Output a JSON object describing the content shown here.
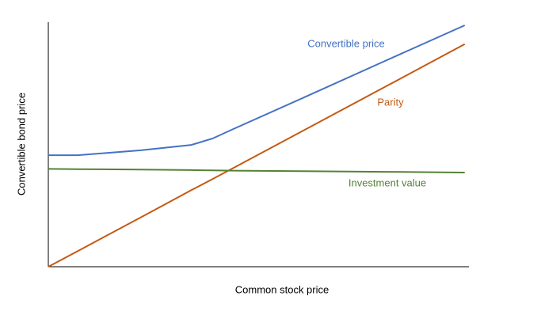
{
  "chart_data": {
    "type": "line",
    "x_label": "Common stock price",
    "y_label": "Convertible bond price",
    "x": [
      0,
      7,
      22,
      34,
      39,
      44,
      60,
      80,
      99
    ],
    "xlim": [
      0,
      100
    ],
    "ylim": [
      0,
      100
    ],
    "series": [
      {
        "name": "Convertible price",
        "color": "#4472c4",
        "values": [
          45.6,
          45.6,
          47.6,
          49.8,
          52.4,
          56.3,
          68.6,
          84.1,
          98.7
        ]
      },
      {
        "name": "Parity",
        "color": "#c55a11",
        "values": [
          0,
          6.4,
          20.2,
          31.3,
          35.8,
          40.4,
          55.1,
          73.5,
          91
        ]
      },
      {
        "name": "Investment value",
        "color": "#548235",
        "values": [
          40,
          39.9,
          39.7,
          39.5,
          39.4,
          39.3,
          39.1,
          38.8,
          38.5
        ]
      }
    ]
  }
}
